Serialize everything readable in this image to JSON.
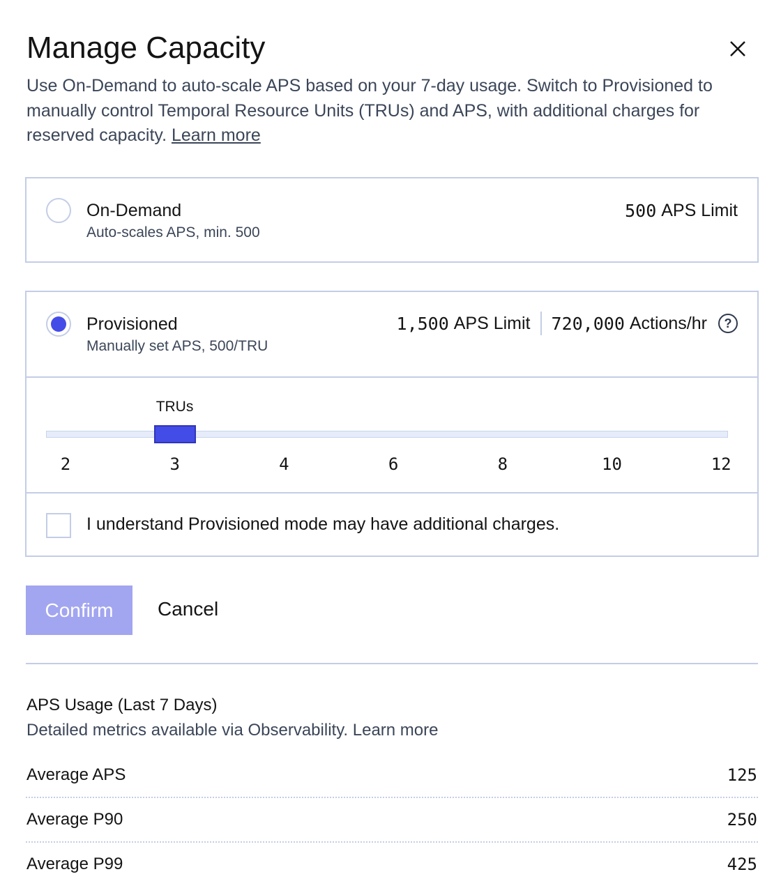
{
  "dialog": {
    "title": "Manage Capacity",
    "description": "Use On-Demand to auto-scale APS based on your 7-day usage. Switch to Provisioned to manually control Temporal Resource Units (TRUs) and APS, with additional charges for reserved capacity.",
    "learn_more": "Learn more",
    "close_icon": "close-icon"
  },
  "on_demand": {
    "title": "On-Demand",
    "subtitle": "Auto-scales APS, min. 500",
    "limit_value": "500",
    "limit_label": "APS Limit",
    "selected": false
  },
  "provisioned": {
    "title": "Provisioned",
    "subtitle": "Manually set APS, 500/TRU",
    "limit_value": "1,500",
    "limit_label": "APS Limit",
    "actions_value": "720,000",
    "actions_label": "Actions/hr",
    "help_icon": "question-circle-icon",
    "selected": true,
    "slider": {
      "label": "TRUs",
      "ticks": [
        "2",
        "3",
        "4",
        "6",
        "8",
        "10",
        "12"
      ],
      "value": 3
    },
    "ack_label": "I understand Provisioned mode may have additional charges.",
    "ack_checked": false
  },
  "actions": {
    "confirm": "Confirm",
    "cancel": "Cancel"
  },
  "usage": {
    "title": "APS Usage (Last 7 Days)",
    "subtitle": "Detailed metrics available via Observability. Learn more",
    "rows": [
      {
        "label": "Average APS",
        "value": "125"
      },
      {
        "label": "Average P90",
        "value": "250"
      },
      {
        "label": "Average P99",
        "value": "425"
      }
    ]
  },
  "colors": {
    "accent": "#444ce7",
    "confirm_disabled": "#a2a5ef",
    "border": "#c3cde6"
  }
}
